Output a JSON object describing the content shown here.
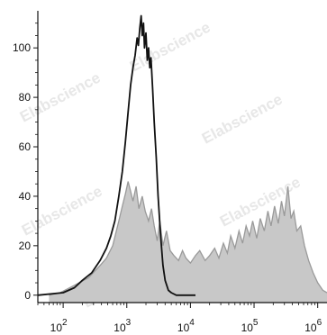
{
  "chart_data": {
    "type": "area",
    "title": "",
    "xlabel": "",
    "ylabel": "",
    "x_scale": "log",
    "xlim": [
      40,
      1400000
    ],
    "ylim": [
      -3,
      115
    ],
    "grid": false,
    "legend": "none",
    "watermark": "Elabscience",
    "y_ticks": [
      {
        "value": 0,
        "label": "0"
      },
      {
        "value": 20,
        "label": "20"
      },
      {
        "value": 40,
        "label": "40"
      },
      {
        "value": 60,
        "label": "60"
      },
      {
        "value": 80,
        "label": "80"
      },
      {
        "value": 100,
        "label": "100"
      }
    ],
    "x_ticks": [
      {
        "value": 100,
        "base": "10",
        "exp": "2"
      },
      {
        "value": 1000,
        "base": "10",
        "exp": "3"
      },
      {
        "value": 10000,
        "base": "10",
        "exp": "4"
      },
      {
        "value": 100000,
        "base": "10",
        "exp": "5"
      },
      {
        "value": 1000000,
        "base": "10",
        "exp": "6"
      }
    ],
    "series": [
      {
        "style": "filled",
        "color": "#c8c8c8",
        "edge_color": "#9a9a9a",
        "points": [
          [
            60,
            0
          ],
          [
            90,
            1
          ],
          [
            150,
            4
          ],
          [
            250,
            7
          ],
          [
            380,
            12
          ],
          [
            480,
            15
          ],
          [
            600,
            20
          ],
          [
            750,
            30
          ],
          [
            850,
            36
          ],
          [
            950,
            41
          ],
          [
            1050,
            46
          ],
          [
            1150,
            42
          ],
          [
            1250,
            38
          ],
          [
            1400,
            44
          ],
          [
            1550,
            35
          ],
          [
            1750,
            40
          ],
          [
            1950,
            34
          ],
          [
            2200,
            30
          ],
          [
            2450,
            35
          ],
          [
            2700,
            28
          ],
          [
            3000,
            22
          ],
          [
            3300,
            30
          ],
          [
            3700,
            20
          ],
          [
            4200,
            26
          ],
          [
            4800,
            18
          ],
          [
            5500,
            16
          ],
          [
            6500,
            14
          ],
          [
            7500,
            18
          ],
          [
            8500,
            15
          ],
          [
            10000,
            13
          ],
          [
            12000,
            16
          ],
          [
            14000,
            18
          ],
          [
            17000,
            14
          ],
          [
            20000,
            16
          ],
          [
            24000,
            19
          ],
          [
            28000,
            15
          ],
          [
            33000,
            21
          ],
          [
            38000,
            17
          ],
          [
            43000,
            24
          ],
          [
            50000,
            19
          ],
          [
            58000,
            26
          ],
          [
            66000,
            21
          ],
          [
            75000,
            28
          ],
          [
            85000,
            24
          ],
          [
            95000,
            30
          ],
          [
            110000,
            23
          ],
          [
            125000,
            31
          ],
          [
            145000,
            26
          ],
          [
            165000,
            34
          ],
          [
            185000,
            28
          ],
          [
            210000,
            36
          ],
          [
            240000,
            29
          ],
          [
            270000,
            38
          ],
          [
            300000,
            32
          ],
          [
            340000,
            44
          ],
          [
            380000,
            31
          ],
          [
            420000,
            34
          ],
          [
            470000,
            26
          ],
          [
            540000,
            28
          ],
          [
            620000,
            20
          ],
          [
            720000,
            14
          ],
          [
            850000,
            9
          ],
          [
            1000000,
            5
          ],
          [
            1200000,
            2
          ],
          [
            1400000,
            1
          ]
        ]
      },
      {
        "style": "line",
        "color": "#111111",
        "points": [
          [
            40,
            0
          ],
          [
            100,
            1
          ],
          [
            150,
            3
          ],
          [
            200,
            6
          ],
          [
            280,
            9
          ],
          [
            380,
            14
          ],
          [
            480,
            19
          ],
          [
            560,
            24
          ],
          [
            650,
            30
          ],
          [
            750,
            40
          ],
          [
            850,
            50
          ],
          [
            950,
            62
          ],
          [
            1050,
            74
          ],
          [
            1150,
            85
          ],
          [
            1250,
            92
          ],
          [
            1350,
            97
          ],
          [
            1450,
            104
          ],
          [
            1520,
            101
          ],
          [
            1600,
            108
          ],
          [
            1680,
            113
          ],
          [
            1750,
            105
          ],
          [
            1830,
            110
          ],
          [
            1900,
            100
          ],
          [
            2000,
            106
          ],
          [
            2100,
            95
          ],
          [
            2200,
            100
          ],
          [
            2300,
            92
          ],
          [
            2400,
            96
          ],
          [
            2550,
            83
          ],
          [
            2700,
            70
          ],
          [
            2900,
            56
          ],
          [
            3100,
            40
          ],
          [
            3400,
            24
          ],
          [
            3700,
            12
          ],
          [
            4000,
            6
          ],
          [
            4500,
            2
          ],
          [
            5000,
            1
          ],
          [
            6000,
            0
          ],
          [
            9000,
            0
          ],
          [
            12000,
            0
          ]
        ]
      }
    ]
  }
}
